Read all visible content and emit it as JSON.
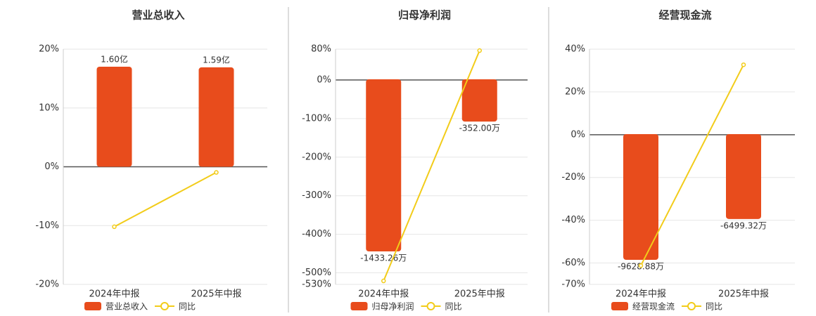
{
  "chart_data": [
    {
      "type": "bar-line",
      "title": "营业总收入",
      "categories": [
        "2024年中报",
        "2025年中报"
      ],
      "series": [
        {
          "name": "营业总收入",
          "color": "#e84c1c",
          "axis": "y2",
          "values": [
            1.6,
            1.59
          ],
          "value_labels": [
            "1.60亿",
            "1.59亿"
          ]
        },
        {
          "name": "同比",
          "color": "#f2cc1a",
          "axis": "y",
          "values": [
            -10.2,
            -0.96
          ]
        }
      ],
      "ylim": [
        -20,
        20
      ],
      "yticks": [
        {
          "value": -20,
          "label": "-20%"
        },
        {
          "value": -10,
          "label": "-10%"
        },
        {
          "value": 0,
          "label": "0%"
        },
        {
          "value": 10,
          "label": "10%"
        },
        {
          "value": 20,
          "label": "20%"
        }
      ],
      "y2lim": [
        -1.88,
        1.88
      ],
      "grid": true
    },
    {
      "type": "bar-line",
      "title": "归母净利润",
      "categories": [
        "2024年中报",
        "2025年中报"
      ],
      "series": [
        {
          "name": "归母净利润",
          "color": "#e84c1c",
          "axis": "y2",
          "values": [
            -1433.26,
            -352.0
          ],
          "value_labels": [
            "-1433.26万",
            "-352.00万"
          ]
        },
        {
          "name": "同比",
          "color": "#f2cc1a",
          "axis": "y",
          "values": [
            -521,
            76.3
          ]
        }
      ],
      "ylim": [
        -530,
        80
      ],
      "yticks": [
        {
          "value": -530,
          "label": "-530%"
        },
        {
          "value": -500,
          "label": "-500%"
        },
        {
          "value": -400,
          "label": "-400%"
        },
        {
          "value": -300,
          "label": "-300%"
        },
        {
          "value": -200,
          "label": "-200%"
        },
        {
          "value": -100,
          "label": "-100%"
        },
        {
          "value": 0,
          "label": "0%"
        },
        {
          "value": 80,
          "label": "80%"
        }
      ],
      "y2lim": [
        -1708,
        251
      ],
      "grid": true
    },
    {
      "type": "bar-line",
      "title": "经营现金流",
      "categories": [
        "2024年中报",
        "2025年中报"
      ],
      "series": [
        {
          "name": "经营现金流",
          "color": "#e84c1c",
          "axis": "y2",
          "values": [
            -9628.88,
            -6499.32
          ],
          "value_labels": [
            "-9628.88万",
            "-6499.32万"
          ]
        },
        {
          "name": "同比",
          "color": "#f2cc1a",
          "axis": "y",
          "values": [
            -61.2,
            32.7
          ]
        }
      ],
      "ylim": [
        -70,
        40
      ],
      "yticks": [
        {
          "value": -70,
          "label": "-70%"
        },
        {
          "value": -60,
          "label": "-60%"
        },
        {
          "value": -40,
          "label": "-40%"
        },
        {
          "value": -20,
          "label": "-20%"
        },
        {
          "value": 0,
          "label": "0%"
        },
        {
          "value": 20,
          "label": "20%"
        },
        {
          "value": 40,
          "label": "40%"
        }
      ],
      "y2lim": [
        -11511,
        6509
      ],
      "grid": true
    }
  ]
}
